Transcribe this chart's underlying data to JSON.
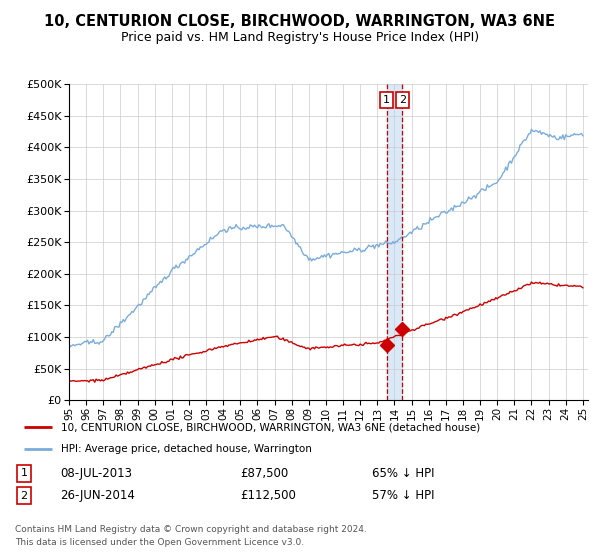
{
  "title": "10, CENTURION CLOSE, BIRCHWOOD, WARRINGTON, WA3 6NE",
  "subtitle": "Price paid vs. HM Land Registry's House Price Index (HPI)",
  "legend_line1": "10, CENTURION CLOSE, BIRCHWOOD, WARRINGTON, WA3 6NE (detached house)",
  "legend_line2": "HPI: Average price, detached house, Warrington",
  "footer": "Contains HM Land Registry data © Crown copyright and database right 2024.\nThis data is licensed under the Open Government Licence v3.0.",
  "sale1_date": "08-JUL-2013",
  "sale1_price": 87500,
  "sale1_label": "65% ↓ HPI",
  "sale2_date": "26-JUN-2014",
  "sale2_price": 112500,
  "sale2_label": "57% ↓ HPI",
  "hpi_color": "#7aaddc",
  "price_color": "#cc0000",
  "sale_marker_color": "#cc0000",
  "vline_color": "#cc0000",
  "vband_color": "#d0e4f7",
  "background_color": "#ffffff",
  "grid_color": "#cccccc",
  "ylim": [
    0,
    500000
  ],
  "yticks": [
    0,
    50000,
    100000,
    150000,
    200000,
    250000,
    300000,
    350000,
    400000,
    450000,
    500000
  ],
  "xtick_labels": [
    "95",
    "96",
    "97",
    "98",
    "99",
    "00",
    "01",
    "02",
    "03",
    "04",
    "05",
    "06",
    "07",
    "08",
    "09",
    "10",
    "11",
    "12",
    "13",
    "14",
    "15",
    "16",
    "17",
    "18",
    "19",
    "20",
    "21",
    "22",
    "23",
    "24",
    "25"
  ]
}
